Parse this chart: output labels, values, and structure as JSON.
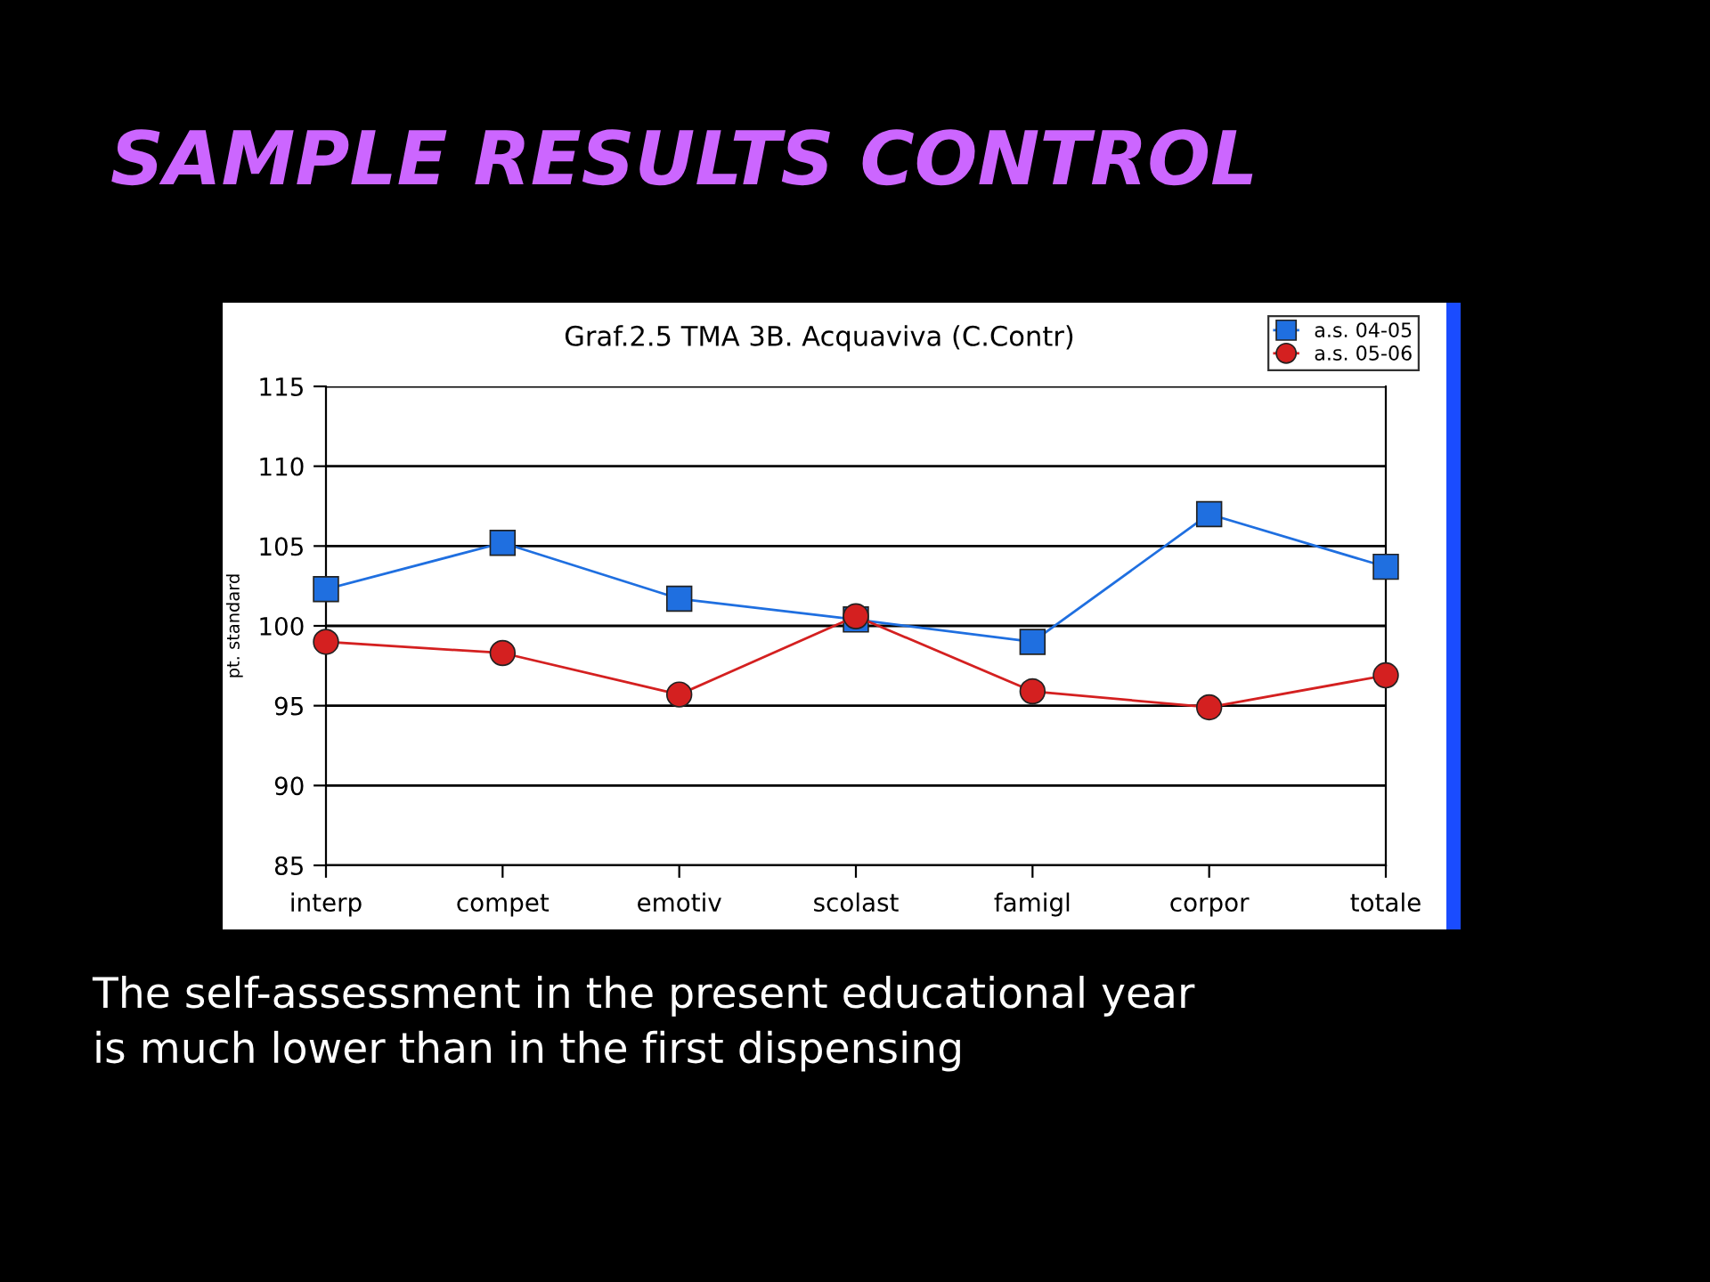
{
  "chart_data": {
    "type": "line",
    "title": "SAMPLE RESULTS CONTROL",
    "subtitle": "Graf.2.5 TMA 3B. Acquaviva (C.Contr)",
    "ylabel": "pt. standard",
    "categories": [
      "interp",
      "compet",
      "emotiv",
      "scolast",
      "famigl",
      "corpor",
      "totale"
    ],
    "series": [
      {
        "name": "a.s. 04-05",
        "color": "#1f6fe0",
        "marker": "square",
        "values": [
          102.3,
          105.2,
          101.7,
          100.4,
          99.0,
          107.0,
          103.7
        ]
      },
      {
        "name": "a.s. 05-06",
        "color": "#d42020",
        "marker": "circle",
        "values": [
          99.0,
          98.3,
          95.7,
          100.6,
          95.9,
          94.9,
          96.9
        ]
      }
    ],
    "ylim": [
      85,
      115
    ],
    "yticks": [
      85,
      90,
      95,
      100,
      105,
      110,
      115
    ],
    "grid": "y",
    "legend": "top right",
    "line_style": "solid",
    "annotations": [
      "The self-assessment in the present educational year\nis much lower than in the first dispensing"
    ]
  }
}
